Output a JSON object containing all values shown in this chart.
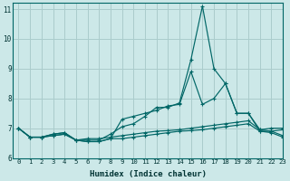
{
  "xlabel": "Humidex (Indice chaleur)",
  "background_color": "#cce8e8",
  "grid_color": "#aacccc",
  "line_color": "#006666",
  "xlim": [
    -0.5,
    23
  ],
  "ylim": [
    6.0,
    11.2
  ],
  "yticks": [
    6,
    7,
    8,
    9,
    10,
    11
  ],
  "xticks": [
    0,
    1,
    2,
    3,
    4,
    5,
    6,
    7,
    8,
    9,
    10,
    11,
    12,
    13,
    14,
    15,
    16,
    17,
    18,
    19,
    20,
    21,
    22,
    23
  ],
  "series": [
    [
      7.0,
      6.7,
      6.7,
      6.8,
      6.85,
      6.6,
      6.55,
      6.55,
      6.65,
      7.3,
      7.4,
      7.5,
      7.6,
      7.75,
      7.8,
      8.9,
      7.8,
      8.0,
      8.5,
      7.5,
      7.5,
      6.9,
      6.9,
      6.95
    ],
    [
      7.0,
      6.7,
      6.7,
      6.8,
      6.85,
      6.6,
      6.6,
      6.6,
      6.8,
      7.05,
      7.15,
      7.4,
      7.7,
      7.7,
      7.85,
      9.3,
      11.1,
      9.0,
      8.5,
      7.5,
      7.5,
      6.95,
      7.0,
      7.0
    ],
    [
      7.0,
      6.7,
      6.7,
      6.75,
      6.8,
      6.6,
      6.65,
      6.65,
      6.7,
      6.75,
      6.8,
      6.85,
      6.9,
      6.92,
      6.95,
      7.0,
      7.05,
      7.1,
      7.15,
      7.2,
      7.25,
      6.95,
      6.9,
      6.75
    ],
    [
      7.0,
      6.7,
      6.7,
      6.75,
      6.8,
      6.6,
      6.55,
      6.55,
      6.65,
      6.65,
      6.7,
      6.75,
      6.8,
      6.85,
      6.9,
      6.92,
      6.95,
      7.0,
      7.05,
      7.1,
      7.15,
      6.9,
      6.85,
      6.7
    ]
  ]
}
